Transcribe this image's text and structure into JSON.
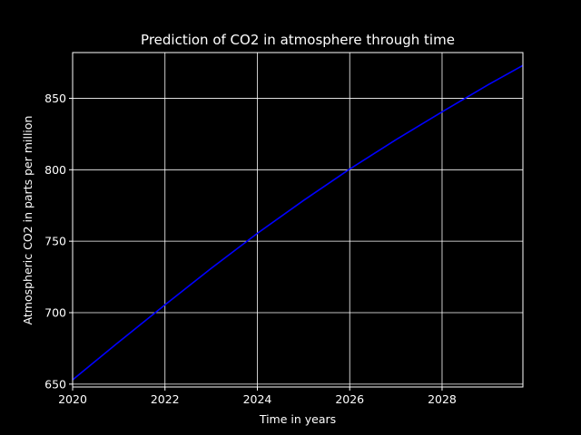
{
  "chart_data": {
    "type": "line",
    "title": "Prediction of CO2 in atmosphere through time",
    "xlabel": "Time in years",
    "ylabel": "Atmospheric CO2 in parts per million",
    "xlim": [
      2020,
      2029.75
    ],
    "ylim": [
      648,
      882
    ],
    "x_ticks": [
      2020,
      2022,
      2024,
      2026,
      2028
    ],
    "y_ticks": [
      650,
      700,
      750,
      800,
      850
    ],
    "grid": true,
    "colors": {
      "background": "#000000",
      "foreground": "#ffffff",
      "line": "#0000ff"
    },
    "series": [
      {
        "x": [
          2020,
          2021,
          2022,
          2023,
          2024,
          2025,
          2026,
          2027,
          2028,
          2029,
          2029.75
        ],
        "y": [
          653,
          679.5,
          705.5,
          731,
          755.5,
          778.5,
          800.5,
          821,
          840.5,
          859.5,
          873
        ]
      }
    ]
  }
}
